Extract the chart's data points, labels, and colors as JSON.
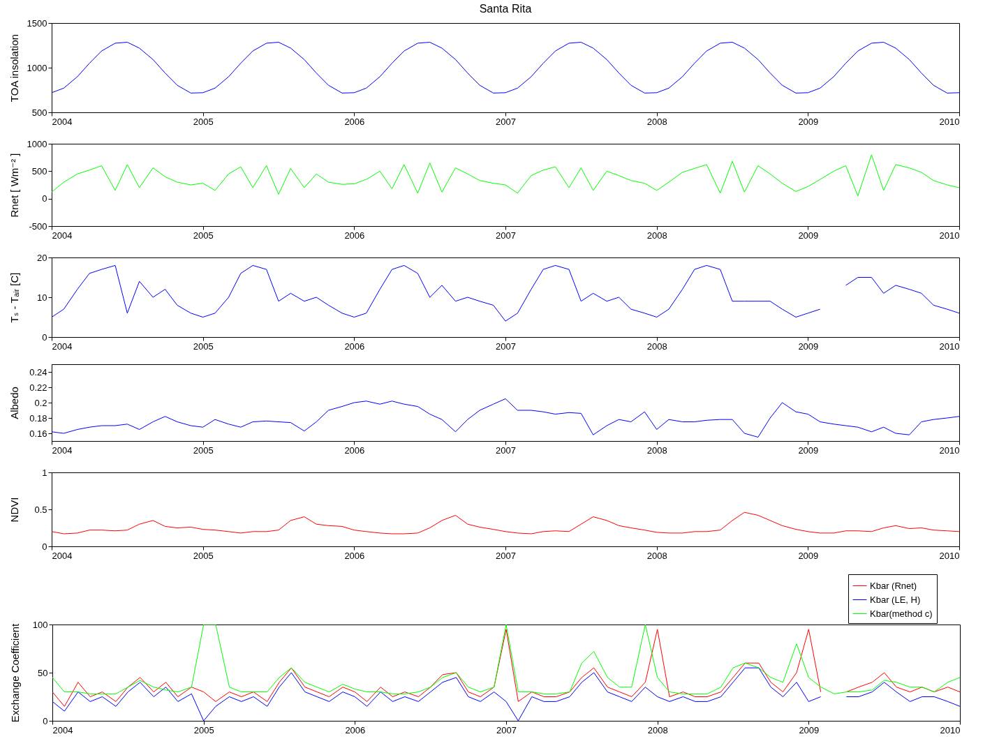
{
  "chart_data": [
    {
      "type": "line",
      "title": "Santa Rita",
      "ylabel": "TOA insolation",
      "color": "#0000ff",
      "xlim": [
        2004,
        2010
      ],
      "xticks": [
        2004,
        2005,
        2006,
        2007,
        2008,
        2009,
        2010
      ],
      "ylim": [
        500,
        1500
      ],
      "yticks": [
        500,
        1000,
        1500
      ],
      "x": [
        2004,
        2004.08,
        2004.17,
        2004.25,
        2004.33,
        2004.42,
        2004.5,
        2004.58,
        2004.67,
        2004.75,
        2004.83,
        2004.92,
        2005,
        2005.08,
        2005.17,
        2005.25,
        2005.33,
        2005.42,
        2005.5,
        2005.58,
        2005.67,
        2005.75,
        2005.83,
        2005.92,
        2006,
        2006.08,
        2006.17,
        2006.25,
        2006.33,
        2006.42,
        2006.5,
        2006.58,
        2006.67,
        2006.75,
        2006.83,
        2006.92,
        2007,
        2007.08,
        2007.17,
        2007.25,
        2007.33,
        2007.42,
        2007.5,
        2007.58,
        2007.67,
        2007.75,
        2007.83,
        2007.92,
        2008,
        2008.08,
        2008.17,
        2008.25,
        2008.33,
        2008.42,
        2008.5,
        2008.58,
        2008.67,
        2008.75,
        2008.83,
        2008.92,
        2009,
        2009.08,
        2009.17,
        2009.25,
        2009.33,
        2009.42,
        2009.5,
        2009.58,
        2009.67,
        2009.75,
        2009.83,
        2009.92,
        2010
      ],
      "values": [
        720,
        771,
        899,
        1050,
        1187,
        1274,
        1285,
        1219,
        1091,
        940,
        803,
        716,
        720,
        771,
        899,
        1050,
        1187,
        1274,
        1285,
        1219,
        1091,
        940,
        803,
        716,
        720,
        771,
        899,
        1050,
        1187,
        1274,
        1285,
        1219,
        1091,
        940,
        803,
        716,
        720,
        771,
        899,
        1050,
        1187,
        1274,
        1285,
        1219,
        1091,
        940,
        803,
        716,
        720,
        771,
        899,
        1050,
        1187,
        1274,
        1285,
        1219,
        1091,
        940,
        803,
        716,
        720,
        771,
        899,
        1050,
        1187,
        1274,
        1285,
        1219,
        1091,
        940,
        803,
        716,
        720
      ]
    },
    {
      "type": "line",
      "ylabel": "Rnet [ Wm⁻² ]",
      "color": "#00ff00",
      "xlim": [
        2004,
        2010
      ],
      "xticks": [
        2004,
        2005,
        2006,
        2007,
        2008,
        2009,
        2010
      ],
      "ylim": [
        -500,
        1000
      ],
      "yticks": [
        -500,
        0,
        500,
        1000
      ],
      "x": [
        2004,
        2004.08,
        2004.17,
        2004.25,
        2004.33,
        2004.42,
        2004.5,
        2004.58,
        2004.67,
        2004.75,
        2004.83,
        2004.92,
        2005,
        2005.08,
        2005.17,
        2005.25,
        2005.33,
        2005.42,
        2005.5,
        2005.58,
        2005.67,
        2005.75,
        2005.83,
        2005.92,
        2006,
        2006.08,
        2006.17,
        2006.25,
        2006.33,
        2006.42,
        2006.5,
        2006.58,
        2006.67,
        2006.75,
        2006.83,
        2006.92,
        2007,
        2007.08,
        2007.17,
        2007.25,
        2007.33,
        2007.42,
        2007.5,
        2007.58,
        2007.67,
        2007.75,
        2007.83,
        2007.92,
        2008,
        2008.08,
        2008.17,
        2008.25,
        2008.33,
        2008.42,
        2008.5,
        2008.58,
        2008.67,
        2008.75,
        2008.83,
        2008.92,
        2009,
        2009.08,
        2009.17,
        2009.25,
        2009.33,
        2009.42,
        2009.5,
        2009.58,
        2009.67,
        2009.75,
        2009.83,
        2009.92,
        2010
      ],
      "values": [
        120,
        300,
        450,
        520,
        600,
        150,
        620,
        200,
        560,
        400,
        300,
        250,
        280,
        150,
        450,
        580,
        200,
        600,
        80,
        550,
        200,
        450,
        300,
        260,
        270,
        350,
        500,
        180,
        620,
        100,
        650,
        120,
        560,
        450,
        330,
        280,
        250,
        100,
        420,
        520,
        580,
        200,
        560,
        150,
        500,
        420,
        330,
        280,
        150,
        300,
        480,
        550,
        620,
        100,
        680,
        120,
        600,
        450,
        280,
        130,
        220,
        350,
        500,
        600,
        50,
        800,
        150,
        620,
        560,
        480,
        330,
        250,
        200
      ]
    },
    {
      "type": "line",
      "ylabel": "Tₛ - Tₐᵢᵣ [C]",
      "color": "#0000ff",
      "xlim": [
        2004,
        2010
      ],
      "xticks": [
        2004,
        2005,
        2006,
        2007,
        2008,
        2009,
        2010
      ],
      "ylim": [
        0,
        20
      ],
      "yticks": [
        0,
        10,
        20
      ],
      "x": [
        2004,
        2004.08,
        2004.17,
        2004.25,
        2004.33,
        2004.42,
        2004.5,
        2004.58,
        2004.67,
        2004.75,
        2004.83,
        2004.92,
        2005,
        2005.08,
        2005.17,
        2005.25,
        2005.33,
        2005.42,
        2005.5,
        2005.58,
        2005.67,
        2005.75,
        2005.83,
        2005.92,
        2006,
        2006.08,
        2006.17,
        2006.25,
        2006.33,
        2006.42,
        2006.5,
        2006.58,
        2006.67,
        2006.75,
        2006.83,
        2006.92,
        2007,
        2007.08,
        2007.17,
        2007.25,
        2007.33,
        2007.42,
        2007.5,
        2007.58,
        2007.67,
        2007.75,
        2007.83,
        2007.92,
        2008,
        2008.08,
        2008.17,
        2008.25,
        2008.33,
        2008.42,
        2008.5,
        2008.58,
        2008.67,
        2008.75,
        2008.83,
        2008.92,
        2009,
        2009.08,
        2009.17,
        2009.25,
        2009.33,
        2009.42,
        2009.5,
        2009.58,
        2009.67,
        2009.75,
        2009.83,
        2009.92,
        2010
      ],
      "values": [
        5,
        7,
        12,
        16,
        17,
        18,
        6,
        14,
        10,
        12,
        8,
        6,
        5,
        6,
        10,
        16,
        18,
        17,
        9,
        11,
        9,
        10,
        8,
        6,
        5,
        6,
        12,
        17,
        18,
        16,
        10,
        13,
        9,
        10,
        9,
        8,
        4,
        6,
        12,
        17,
        18,
        17,
        9,
        11,
        9,
        10,
        7,
        6,
        5,
        7,
        12,
        17,
        18,
        17,
        9,
        9,
        9,
        9,
        7,
        5,
        6,
        7,
        null,
        13,
        15,
        15,
        11,
        13,
        12,
        11,
        8,
        7,
        6
      ]
    },
    {
      "type": "line",
      "ylabel": "Albedo",
      "color": "#0000ff",
      "xlim": [
        2004,
        2010
      ],
      "xticks": [
        2004,
        2005,
        2006,
        2007,
        2008,
        2009,
        2010
      ],
      "ylim": [
        0.15,
        0.25
      ],
      "yticks": [
        0.16,
        0.18,
        0.2,
        0.22,
        0.24
      ],
      "x": [
        2004,
        2004.08,
        2004.17,
        2004.25,
        2004.33,
        2004.42,
        2004.5,
        2004.58,
        2004.67,
        2004.75,
        2004.83,
        2004.92,
        2005,
        2005.08,
        2005.17,
        2005.25,
        2005.33,
        2005.42,
        2005.5,
        2005.58,
        2005.67,
        2005.75,
        2005.83,
        2005.92,
        2006,
        2006.08,
        2006.17,
        2006.25,
        2006.33,
        2006.42,
        2006.5,
        2006.58,
        2006.67,
        2006.75,
        2006.83,
        2006.92,
        2007,
        2007.08,
        2007.17,
        2007.25,
        2007.33,
        2007.42,
        2007.5,
        2007.58,
        2007.67,
        2007.75,
        2007.83,
        2007.92,
        2008,
        2008.08,
        2008.17,
        2008.25,
        2008.33,
        2008.42,
        2008.5,
        2008.58,
        2008.67,
        2008.75,
        2008.83,
        2008.92,
        2009,
        2009.08,
        2009.17,
        2009.25,
        2009.33,
        2009.42,
        2009.5,
        2009.58,
        2009.67,
        2009.75,
        2009.83,
        2009.92,
        2010
      ],
      "values": [
        0.162,
        0.16,
        0.165,
        0.168,
        0.17,
        0.17,
        0.172,
        0.165,
        0.175,
        0.182,
        0.175,
        0.17,
        0.168,
        0.178,
        0.172,
        0.168,
        0.175,
        0.176,
        0.175,
        0.174,
        0.163,
        0.175,
        0.19,
        0.195,
        0.2,
        0.202,
        0.198,
        0.202,
        0.198,
        0.195,
        0.185,
        0.178,
        0.162,
        0.178,
        0.19,
        0.198,
        0.205,
        0.19,
        0.19,
        0.188,
        0.185,
        0.187,
        0.186,
        0.158,
        0.17,
        0.178,
        0.175,
        0.188,
        0.165,
        0.178,
        0.175,
        0.175,
        0.177,
        0.178,
        0.178,
        0.16,
        0.155,
        0.18,
        0.2,
        0.188,
        0.185,
        0.175,
        0.172,
        0.17,
        0.168,
        0.162,
        0.168,
        0.16,
        0.158,
        0.175,
        0.178,
        0.18,
        0.182
      ]
    },
    {
      "type": "line",
      "ylabel": "NDVI",
      "color": "#ff0000",
      "xlim": [
        2004,
        2010
      ],
      "xticks": [
        2004,
        2005,
        2006,
        2007,
        2008,
        2009,
        2010
      ],
      "ylim": [
        0,
        1
      ],
      "yticks": [
        0,
        0.5,
        1
      ],
      "x": [
        2004,
        2004.08,
        2004.17,
        2004.25,
        2004.33,
        2004.42,
        2004.5,
        2004.58,
        2004.67,
        2004.75,
        2004.83,
        2004.92,
        2005,
        2005.08,
        2005.17,
        2005.25,
        2005.33,
        2005.42,
        2005.5,
        2005.58,
        2005.67,
        2005.75,
        2005.83,
        2005.92,
        2006,
        2006.08,
        2006.17,
        2006.25,
        2006.33,
        2006.42,
        2006.5,
        2006.58,
        2006.67,
        2006.75,
        2006.83,
        2006.92,
        2007,
        2007.08,
        2007.17,
        2007.25,
        2007.33,
        2007.42,
        2007.5,
        2007.58,
        2007.67,
        2007.75,
        2007.83,
        2007.92,
        2008,
        2008.08,
        2008.17,
        2008.25,
        2008.33,
        2008.42,
        2008.5,
        2008.58,
        2008.67,
        2008.75,
        2008.83,
        2008.92,
        2009,
        2009.08,
        2009.17,
        2009.25,
        2009.33,
        2009.42,
        2009.5,
        2009.58,
        2009.67,
        2009.75,
        2009.83,
        2009.92,
        2010
      ],
      "values": [
        0.2,
        0.17,
        0.18,
        0.22,
        0.22,
        0.21,
        0.22,
        0.3,
        0.35,
        0.27,
        0.25,
        0.26,
        0.23,
        0.22,
        0.2,
        0.18,
        0.2,
        0.2,
        0.22,
        0.35,
        0.4,
        0.3,
        0.28,
        0.27,
        0.22,
        0.2,
        0.18,
        0.17,
        0.17,
        0.18,
        0.25,
        0.35,
        0.42,
        0.3,
        0.26,
        0.23,
        0.2,
        0.18,
        0.17,
        0.2,
        0.21,
        0.2,
        0.3,
        0.4,
        0.35,
        0.28,
        0.25,
        0.22,
        0.19,
        0.18,
        0.18,
        0.2,
        0.2,
        0.22,
        0.35,
        0.46,
        0.42,
        0.35,
        0.28,
        0.23,
        0.2,
        0.18,
        0.18,
        0.21,
        0.21,
        0.2,
        0.25,
        0.28,
        0.24,
        0.25,
        0.22,
        0.21,
        0.2
      ]
    },
    {
      "type": "line",
      "ylabel": "Exchange Coefficient",
      "legend": "top right",
      "xlim": [
        2004,
        2010
      ],
      "xticks": [
        2004,
        2005,
        2006,
        2007,
        2008,
        2009,
        2010
      ],
      "ylim": [
        0,
        100
      ],
      "yticks": [
        0,
        50,
        100
      ],
      "x": [
        2004,
        2004.08,
        2004.17,
        2004.25,
        2004.33,
        2004.42,
        2004.5,
        2004.58,
        2004.67,
        2004.75,
        2004.83,
        2004.92,
        2005,
        2005.08,
        2005.17,
        2005.25,
        2005.33,
        2005.42,
        2005.5,
        2005.58,
        2005.67,
        2005.75,
        2005.83,
        2005.92,
        2006,
        2006.08,
        2006.17,
        2006.25,
        2006.33,
        2006.42,
        2006.5,
        2006.58,
        2006.67,
        2006.75,
        2006.83,
        2006.92,
        2007,
        2007.08,
        2007.17,
        2007.25,
        2007.33,
        2007.42,
        2007.5,
        2007.58,
        2007.67,
        2007.75,
        2007.83,
        2007.92,
        2008,
        2008.08,
        2008.17,
        2008.25,
        2008.33,
        2008.42,
        2008.5,
        2008.58,
        2008.67,
        2008.75,
        2008.83,
        2008.92,
        2009,
        2009.08,
        2009.17,
        2009.25,
        2009.33,
        2009.42,
        2009.5,
        2009.58,
        2009.67,
        2009.75,
        2009.83,
        2009.92,
        2010
      ],
      "series": [
        {
          "name": "Kbar (Rnet)",
          "color": "#ff0000",
          "values": [
            30,
            15,
            40,
            25,
            30,
            20,
            35,
            45,
            30,
            40,
            25,
            35,
            30,
            20,
            30,
            25,
            30,
            20,
            40,
            55,
            35,
            30,
            25,
            35,
            30,
            20,
            35,
            25,
            30,
            25,
            35,
            48,
            50,
            30,
            25,
            35,
            95,
            20,
            30,
            25,
            25,
            30,
            45,
            55,
            35,
            30,
            25,
            40,
            95,
            25,
            30,
            25,
            25,
            30,
            45,
            60,
            60,
            40,
            30,
            50,
            95,
            30,
            null,
            30,
            35,
            40,
            50,
            35,
            30,
            35,
            30,
            35,
            30
          ]
        },
        {
          "name": "Kbar (LE, H)",
          "color": "#0000ff",
          "values": [
            20,
            10,
            30,
            20,
            25,
            15,
            30,
            40,
            25,
            35,
            20,
            28,
            0,
            15,
            25,
            20,
            25,
            15,
            35,
            50,
            30,
            25,
            20,
            30,
            25,
            15,
            30,
            20,
            25,
            20,
            30,
            40,
            45,
            25,
            20,
            30,
            20,
            0,
            25,
            20,
            20,
            25,
            40,
            50,
            30,
            25,
            20,
            35,
            25,
            20,
            25,
            20,
            20,
            25,
            40,
            55,
            55,
            35,
            25,
            40,
            20,
            25,
            null,
            25,
            25,
            30,
            40,
            30,
            20,
            25,
            25,
            20,
            15
          ]
        },
        {
          "name": "Kbar(method c)",
          "color": "#00ff00",
          "values": [
            45,
            30,
            30,
            28,
            28,
            28,
            35,
            42,
            35,
            32,
            30,
            35,
            100,
            100,
            35,
            30,
            30,
            30,
            45,
            55,
            40,
            35,
            30,
            38,
            33,
            30,
            30,
            28,
            28,
            30,
            35,
            45,
            50,
            35,
            30,
            35,
            100,
            30,
            30,
            28,
            28,
            30,
            60,
            72,
            45,
            35,
            35,
            100,
            45,
            30,
            28,
            28,
            28,
            35,
            55,
            60,
            55,
            45,
            40,
            80,
            45,
            35,
            28,
            30,
            30,
            32,
            42,
            40,
            35,
            35,
            30,
            40,
            45
          ]
        }
      ]
    }
  ]
}
